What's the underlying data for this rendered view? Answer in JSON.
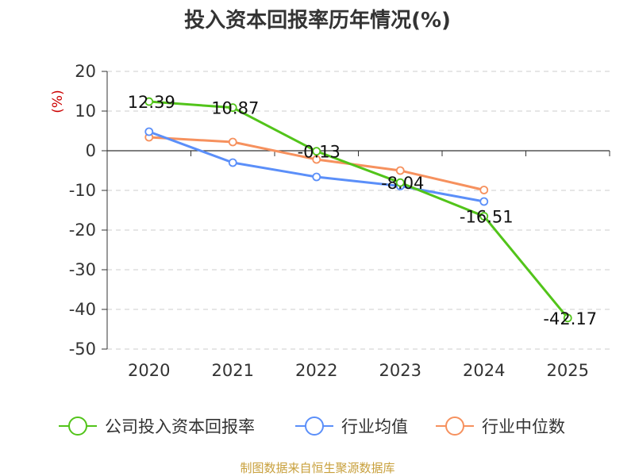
{
  "chart_data": {
    "type": "line",
    "title": "投入资本回报率历年情况(%)",
    "ylabel": "(%)",
    "xlabel": "",
    "categories": [
      "2020",
      "2021",
      "2022",
      "2023",
      "2024",
      "2025"
    ],
    "ylim": [
      -50,
      20
    ],
    "yticks": [
      20,
      10,
      0,
      -10,
      -20,
      -30,
      -40,
      -50
    ],
    "grid": true,
    "legend_position": "bottom",
    "series": [
      {
        "name": "公司投入资本回报率",
        "color": "#52c41a",
        "values": [
          12.39,
          10.87,
          -0.13,
          -8.04,
          -16.51,
          -42.17
        ],
        "labels": [
          "12.39",
          "10.87",
          "-0.13",
          "-8.04",
          "-16.51",
          "-42.17"
        ]
      },
      {
        "name": "行业均值",
        "color": "#5b8ff9",
        "values": [
          4.8,
          -3.0,
          -6.6,
          -8.9,
          -12.8,
          null
        ]
      },
      {
        "name": "行业中位数",
        "color": "#f6915e",
        "values": [
          3.4,
          2.2,
          -2.2,
          -5.0,
          -9.9,
          null
        ]
      }
    ],
    "source": "制图数据来自恒生聚源数据库",
    "source_color": "#c8a03c",
    "ylabel_color": "#cc0000"
  }
}
